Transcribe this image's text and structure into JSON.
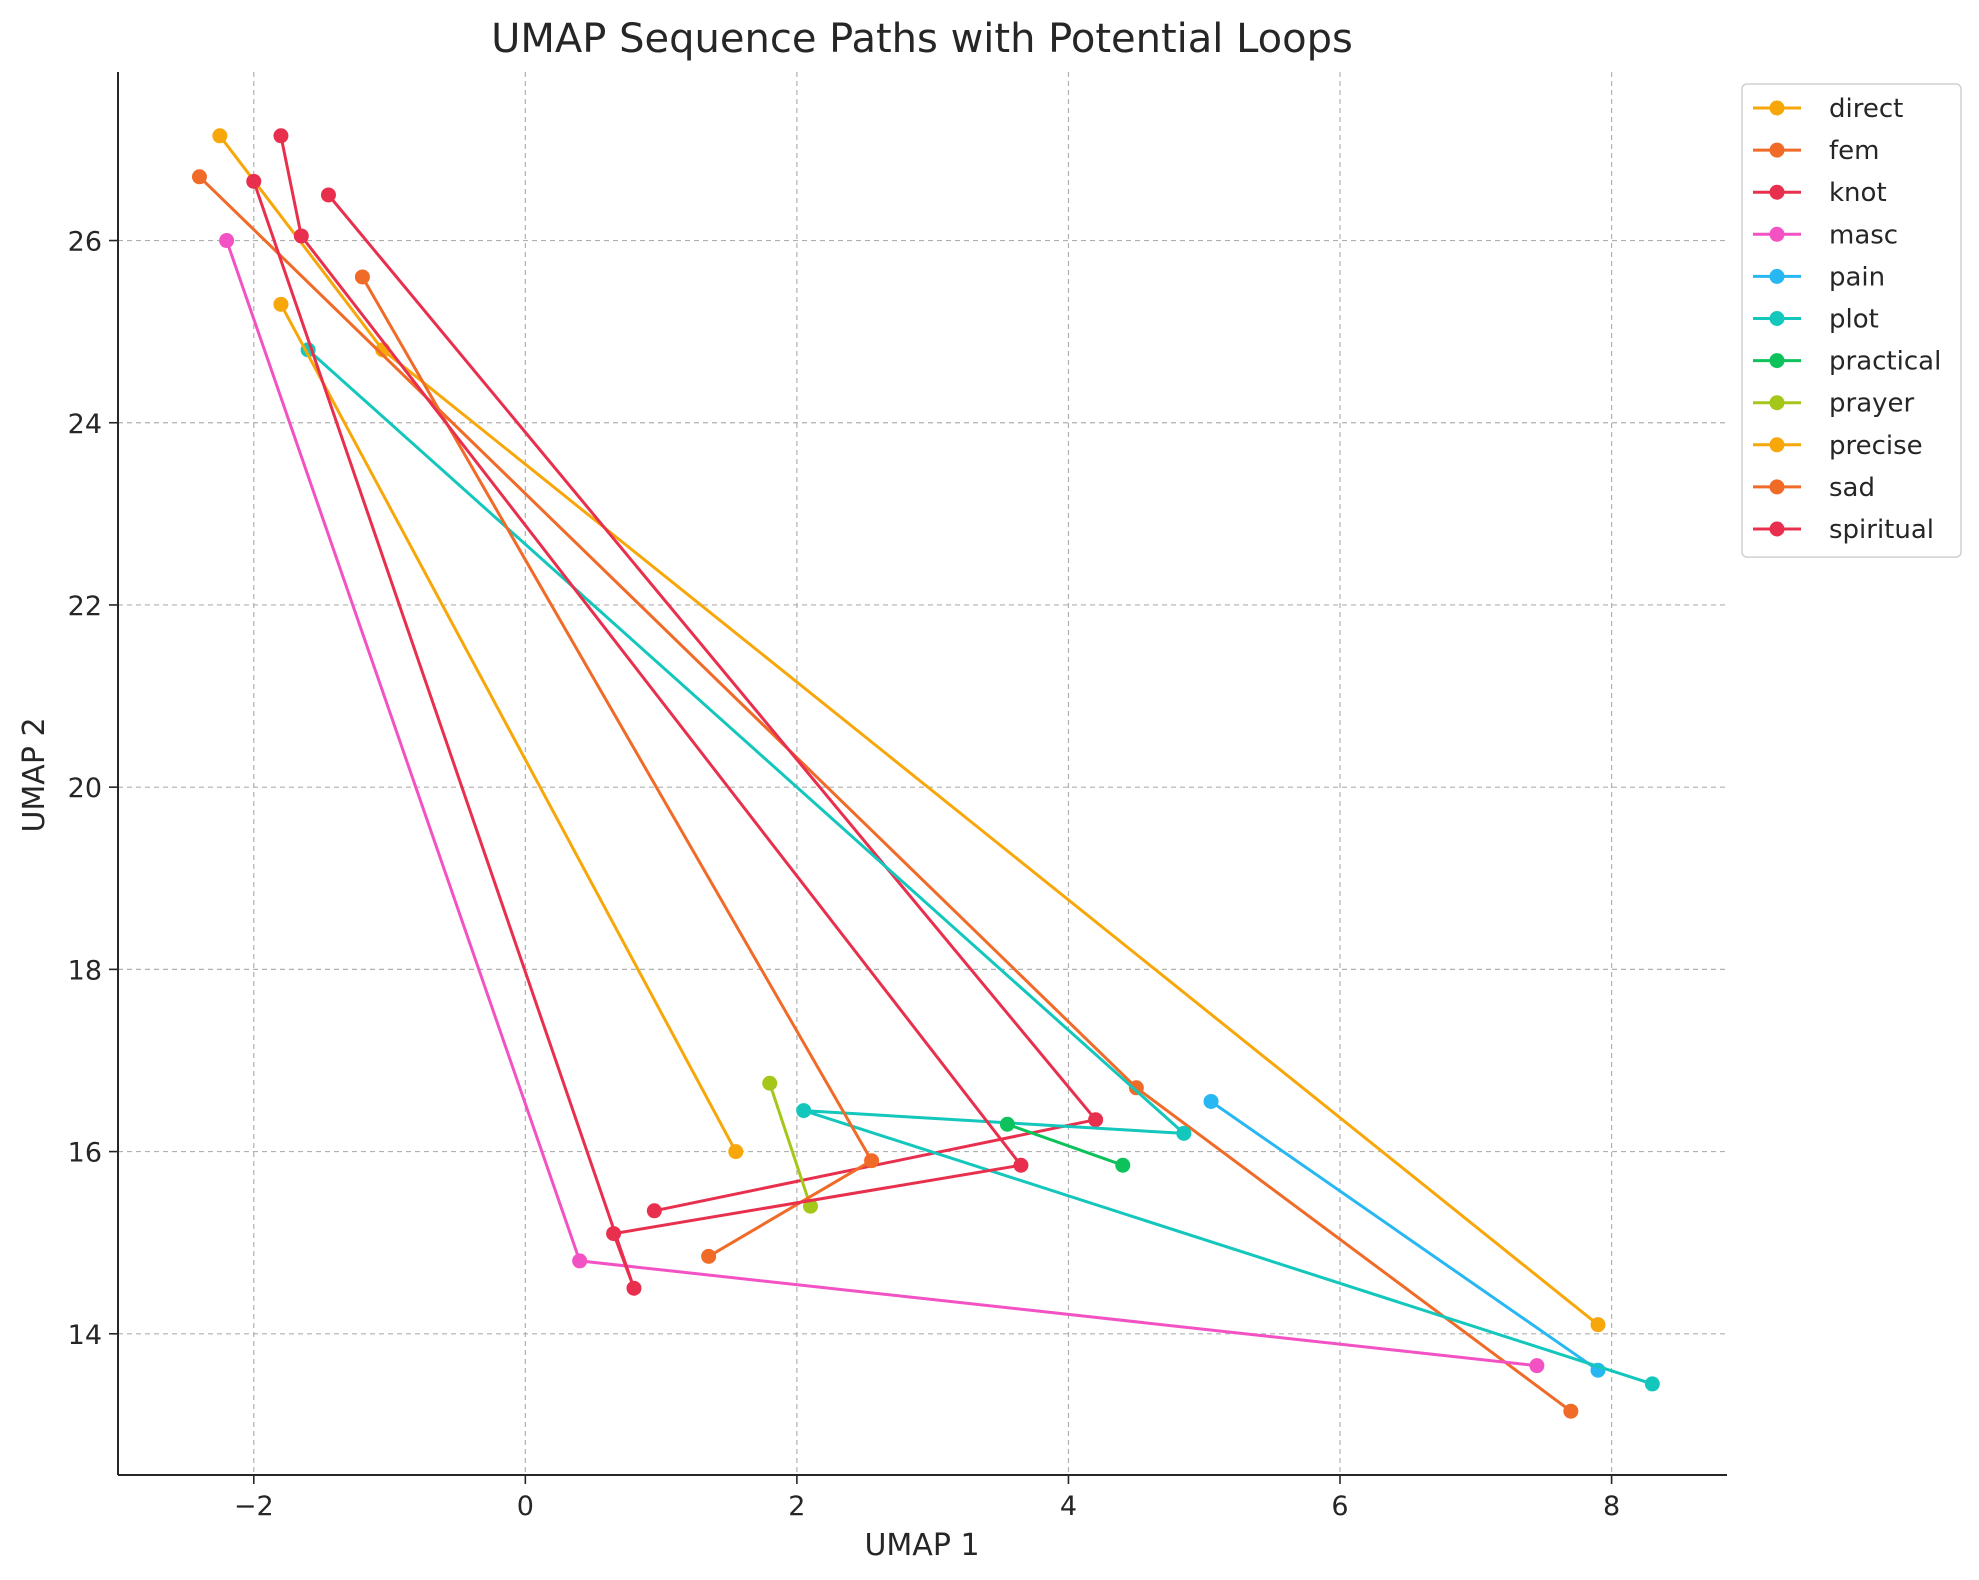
{
  "chart_data": {
    "type": "line",
    "title": "UMAP Sequence Paths with Potential Loops",
    "xlabel": "UMAP 1",
    "ylabel": "UMAP 2",
    "xlim": [
      -3.0,
      8.85
    ],
    "ylim": [
      12.45,
      27.85
    ],
    "xticks": [
      -2,
      0,
      2,
      4,
      6,
      8
    ],
    "yticks": [
      14,
      16,
      18,
      20,
      22,
      24,
      26
    ],
    "xtick_labels": [
      "−2",
      "0",
      "2",
      "4",
      "6",
      "8"
    ],
    "ytick_labels": [
      "14",
      "16",
      "18",
      "20",
      "22",
      "24",
      "26"
    ],
    "grid": true,
    "legend_position": "outside-top-right",
    "series": [
      {
        "name": "direct",
        "color": "#f7a70a",
        "points": [
          [
            -2.25,
            27.15
          ],
          [
            -1.05,
            24.8
          ],
          [
            7.9,
            14.1
          ]
        ]
      },
      {
        "name": "fem",
        "color": "#f06a28",
        "points": [
          [
            -2.4,
            26.7
          ],
          [
            4.5,
            16.7
          ],
          [
            7.7,
            13.15
          ]
        ]
      },
      {
        "name": "knot",
        "color": "#e8304e",
        "points": [
          [
            -1.45,
            26.5
          ],
          [
            4.2,
            16.35
          ],
          [
            0.95,
            15.35
          ]
        ]
      },
      {
        "name": "masc",
        "color": "#f252c3",
        "points": [
          [
            -2.2,
            26.0
          ],
          [
            0.4,
            14.8
          ],
          [
            7.45,
            13.65
          ]
        ]
      },
      {
        "name": "pain",
        "color": "#27b7f2",
        "points": [
          [
            5.05,
            16.55
          ],
          [
            7.9,
            13.6
          ]
        ]
      },
      {
        "name": "plot",
        "color": "#13c7bc",
        "points": [
          [
            -1.6,
            24.8
          ],
          [
            4.85,
            16.2
          ],
          [
            2.05,
            16.45
          ],
          [
            8.3,
            13.45
          ]
        ]
      },
      {
        "name": "practical",
        "color": "#0dc25a",
        "points": [
          [
            3.55,
            16.3
          ],
          [
            4.4,
            15.85
          ]
        ]
      },
      {
        "name": "prayer",
        "color": "#a4c71a",
        "points": [
          [
            1.8,
            16.75
          ],
          [
            2.1,
            15.4
          ]
        ]
      },
      {
        "name": "precise",
        "color": "#f7a70a",
        "points": [
          [
            -1.8,
            25.3
          ],
          [
            1.55,
            16.0
          ]
        ]
      },
      {
        "name": "sad",
        "color": "#f06a28",
        "points": [
          [
            -1.2,
            25.6
          ],
          [
            2.55,
            15.9
          ],
          [
            1.35,
            14.85
          ]
        ]
      },
      {
        "name": "spiritual",
        "color": "#e8304e",
        "points": [
          [
            -1.8,
            27.15
          ],
          [
            -1.65,
            26.05
          ],
          [
            3.65,
            15.85
          ],
          [
            0.65,
            15.1
          ],
          [
            0.8,
            14.5
          ],
          [
            -2.0,
            26.65
          ]
        ]
      }
    ]
  }
}
